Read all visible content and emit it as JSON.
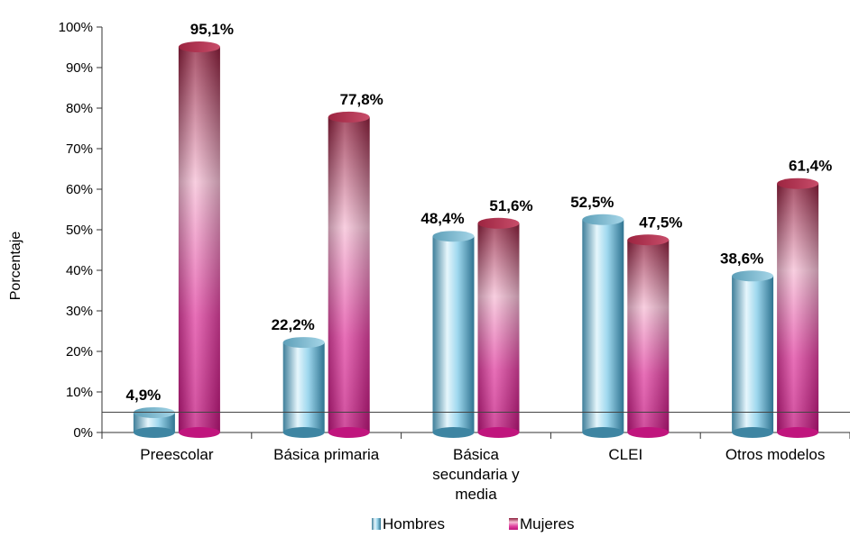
{
  "chart_data": {
    "type": "bar",
    "title": "",
    "xlabel": "",
    "ylabel": "Porcentaje",
    "ylim": [
      0,
      100
    ],
    "yticks": [
      "0%",
      "10%",
      "20%",
      "30%",
      "40%",
      "50%",
      "60%",
      "70%",
      "80%",
      "90%",
      "100%"
    ],
    "categories": [
      [
        "Preescolar"
      ],
      [
        "Básica primaria"
      ],
      [
        "Básica",
        "secundaria y",
        "media"
      ],
      [
        "CLEI"
      ],
      [
        "Otros modelos"
      ]
    ],
    "series": [
      {
        "name": "Hombres",
        "values": [
          4.9,
          22.2,
          48.4,
          52.5,
          38.6
        ],
        "labels": [
          "4,9%",
          "22,2%",
          "48,4%",
          "52,5%",
          "38,6%"
        ],
        "color": "#5ab0cf"
      },
      {
        "name": "Mujeres",
        "values": [
          95.1,
          77.8,
          51.6,
          47.5,
          61.4
        ],
        "labels": [
          "95,1%",
          "77,8%",
          "51,6%",
          "47,5%",
          "61,4%"
        ],
        "color": "#c2185b"
      }
    ],
    "legend": "bottom",
    "grid": false
  }
}
